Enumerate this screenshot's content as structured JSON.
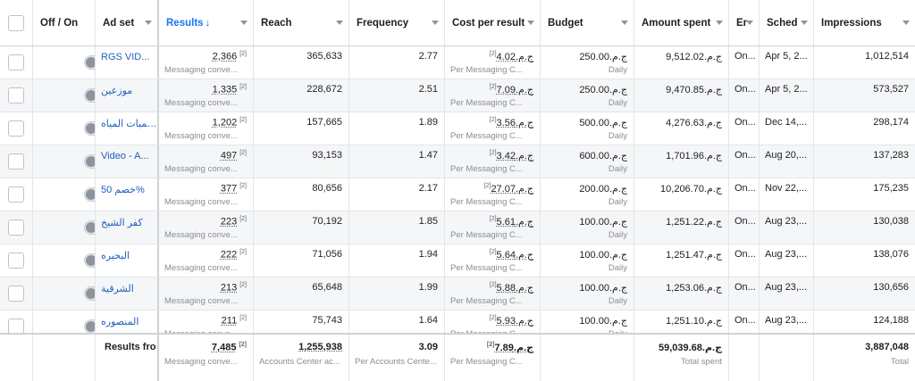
{
  "headers": {
    "toggle": "Off / On",
    "adset": "Ad set",
    "results": "Results",
    "results_sort": "↓",
    "reach": "Reach",
    "frequency": "Frequency",
    "cpr": "Cost per result",
    "budget": "Budget",
    "spent": "Amount spent",
    "ends": "Er",
    "schedule": "Sched",
    "impressions": "Impressions"
  },
  "rows": [
    {
      "name": "RGS VID...",
      "results": "2,366",
      "results_note": "[2]",
      "results_sub": "Messaging conve...",
      "reach": "365,633",
      "frequency": "2.77",
      "cpr": "ج.م.4.02",
      "cpr_note": "[2]",
      "cpr_sub": "Per Messaging C...",
      "budget": "ج.م.250.00",
      "budget_sub": "Daily",
      "spent": "ج.م.9,512.02",
      "ends": "On...",
      "schedule": "Apr 5, 2...",
      "impressions": "1,012,514"
    },
    {
      "name": "موزعين",
      "results": "1,335",
      "results_note": "[2]",
      "results_sub": "Messaging conve...",
      "reach": "228,672",
      "frequency": "2.51",
      "cpr": "ج.م.7.09",
      "cpr_note": "[2]",
      "cpr_sub": "Per Messaging C...",
      "budget": "ج.م.250.00",
      "budget_sub": "Daily",
      "spent": "ج.م.9,470.85",
      "ends": "On...",
      "schedule": "Apr 5, 2...",
      "impressions": "573,527"
    },
    {
      "name": "طولمبات المياه",
      "results": "1,202",
      "results_note": "[2]",
      "results_sub": "Messaging conve...",
      "reach": "157,665",
      "frequency": "1.89",
      "cpr": "ج.م.3.56",
      "cpr_note": "[2]",
      "cpr_sub": "Per Messaging C...",
      "budget": "ج.م.500.00",
      "budget_sub": "Daily",
      "spent": "ج.م.4,276.63",
      "ends": "On...",
      "schedule": "Dec 14,...",
      "impressions": "298,174"
    },
    {
      "name": "Video - A...",
      "results": "497",
      "results_note": "[2]",
      "results_sub": "Messaging conve...",
      "reach": "93,153",
      "frequency": "1.47",
      "cpr": "ج.م.3.42",
      "cpr_note": "[2]",
      "cpr_sub": "Per Messaging C...",
      "budget": "ج.م.600.00",
      "budget_sub": "Daily",
      "spent": "ج.م.1,701.96",
      "ends": "On...",
      "schedule": "Aug 20,...",
      "impressions": "137,283"
    },
    {
      "name": "خصم 50%",
      "results": "377",
      "results_note": "[2]",
      "results_sub": "Messaging conve...",
      "reach": "80,656",
      "frequency": "2.17",
      "cpr": "ج.م.27.07",
      "cpr_note": "[2]",
      "cpr_sub": "Per Messaging C...",
      "budget": "ج.م.200.00",
      "budget_sub": "Daily",
      "spent": "ج.م.10,206.70",
      "ends": "On...",
      "schedule": "Nov 22,...",
      "impressions": "175,235"
    },
    {
      "name": "كفر الشيخ",
      "results": "223",
      "results_note": "[2]",
      "results_sub": "Messaging conve...",
      "reach": "70,192",
      "frequency": "1.85",
      "cpr": "ج.م.5.61",
      "cpr_note": "[2]",
      "cpr_sub": "Per Messaging C...",
      "budget": "ج.م.100.00",
      "budget_sub": "Daily",
      "spent": "ج.م.1,251.22",
      "ends": "On...",
      "schedule": "Aug 23,...",
      "impressions": "130,038"
    },
    {
      "name": "البحيره",
      "results": "222",
      "results_note": "[2]",
      "results_sub": "Messaging conve...",
      "reach": "71,056",
      "frequency": "1.94",
      "cpr": "ج.م.5.64",
      "cpr_note": "[2]",
      "cpr_sub": "Per Messaging C...",
      "budget": "ج.م.100.00",
      "budget_sub": "Daily",
      "spent": "ج.م.1,251.47",
      "ends": "On...",
      "schedule": "Aug 23,...",
      "impressions": "138,076"
    },
    {
      "name": "الشرقية",
      "results": "213",
      "results_note": "[2]",
      "results_sub": "Messaging conve...",
      "reach": "65,648",
      "frequency": "1.99",
      "cpr": "ج.م.5.88",
      "cpr_note": "[2]",
      "cpr_sub": "Per Messaging C...",
      "budget": "ج.م.100.00",
      "budget_sub": "Daily",
      "spent": "ج.م.1,253.06",
      "ends": "On...",
      "schedule": "Aug 23,...",
      "impressions": "130,656"
    },
    {
      "name": "المنصوره",
      "results": "211",
      "results_note": "[2]",
      "results_sub": "Messaging conve...",
      "reach": "75,743",
      "frequency": "1.64",
      "cpr": "ج.م.5.93",
      "cpr_note": "[2]",
      "cpr_sub": "Per Messaging C...",
      "budget": "ج.م.100.00",
      "budget_sub": "Daily",
      "spent": "ج.م.1,251.10",
      "ends": "On...",
      "schedule": "Aug 23,...",
      "impressions": "124,188"
    }
  ],
  "footer": {
    "label": "Results fro",
    "results": "7,485",
    "results_note": "[2]",
    "results_sub": "Messaging conve...",
    "reach": "1,255,938",
    "reach_sub": "Accounts Center ac...",
    "frequency": "3.09",
    "frequency_sub": "Per Accounts Cente...",
    "cpr": "ج.م.7.89",
    "cpr_note": "[2]",
    "cpr_sub": "Per Messaging C...",
    "spent": "ج.م.59,039.68",
    "spent_sub": "Total spent",
    "impressions": "3,887,048",
    "impressions_sub": "Total"
  }
}
